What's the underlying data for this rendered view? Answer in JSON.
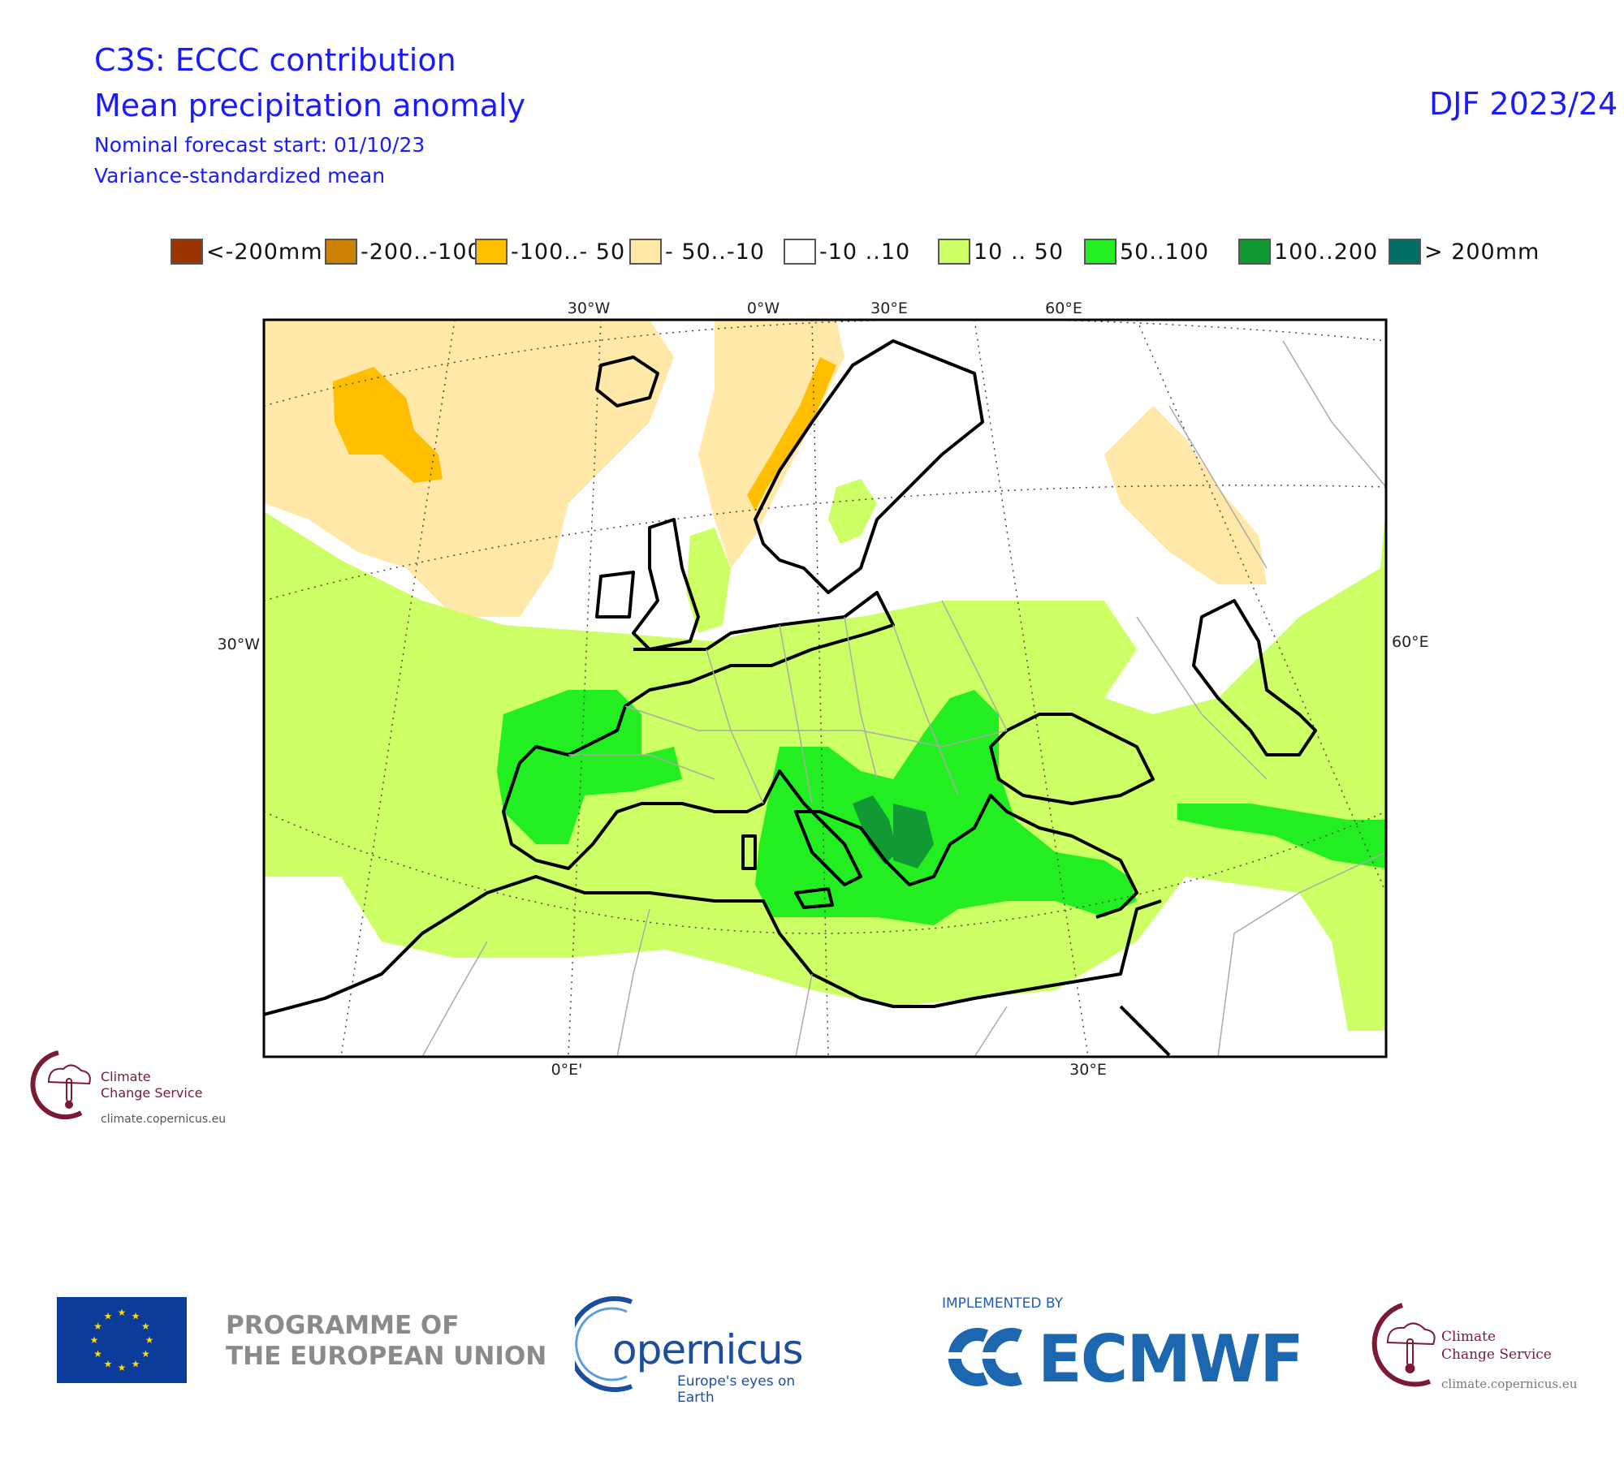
{
  "header": {
    "line1": "C3S: ECCC contribution",
    "line2": "Mean precipitation anomaly",
    "line3": "Nominal forecast start: 01/10/23",
    "line4": "Variance-standardized mean",
    "period": "DJF 2023/24"
  },
  "legend": [
    {
      "label": "<-200mm",
      "color": "#993300"
    },
    {
      "label": "-200..-100",
      "color": "#cc8000"
    },
    {
      "label": "-100..- 50",
      "color": "#ffbf00"
    },
    {
      "label": "- 50..-10",
      "color": "#ffe8a8"
    },
    {
      "label": "-10 ..10",
      "color": "#ffffff"
    },
    {
      "label": "10 .. 50",
      "color": "#ccff66"
    },
    {
      "label": "50..100",
      "color": "#22ee22"
    },
    {
      "label": "100..200",
      "color": "#119933"
    },
    {
      "label": "> 200mm",
      "color": "#006e64"
    }
  ],
  "map": {
    "region": "Europe",
    "top_labels": [
      "30°W",
      "0°W",
      "30°E",
      "60°E"
    ],
    "left_label": "30°W",
    "right_label": "60°E",
    "bottom_labels": [
      "0°E'",
      "30°E"
    ]
  },
  "logos": {
    "c3s_small": {
      "line1": "Climate",
      "line2": "Change Service",
      "url": "climate.copernicus.eu"
    },
    "eu": {
      "line1": "PROGRAMME OF",
      "line2": "THE EUROPEAN UNION"
    },
    "copernicus": {
      "word": "opernicus",
      "tagline": "Europe's eyes on Earth"
    },
    "ecmwf": {
      "implemented_by": "IMPLEMENTED BY",
      "word": "ECMWF"
    },
    "c3s_big": {
      "line1": "Climate",
      "line2": "Change Service",
      "url": "climate.copernicus.eu"
    }
  }
}
